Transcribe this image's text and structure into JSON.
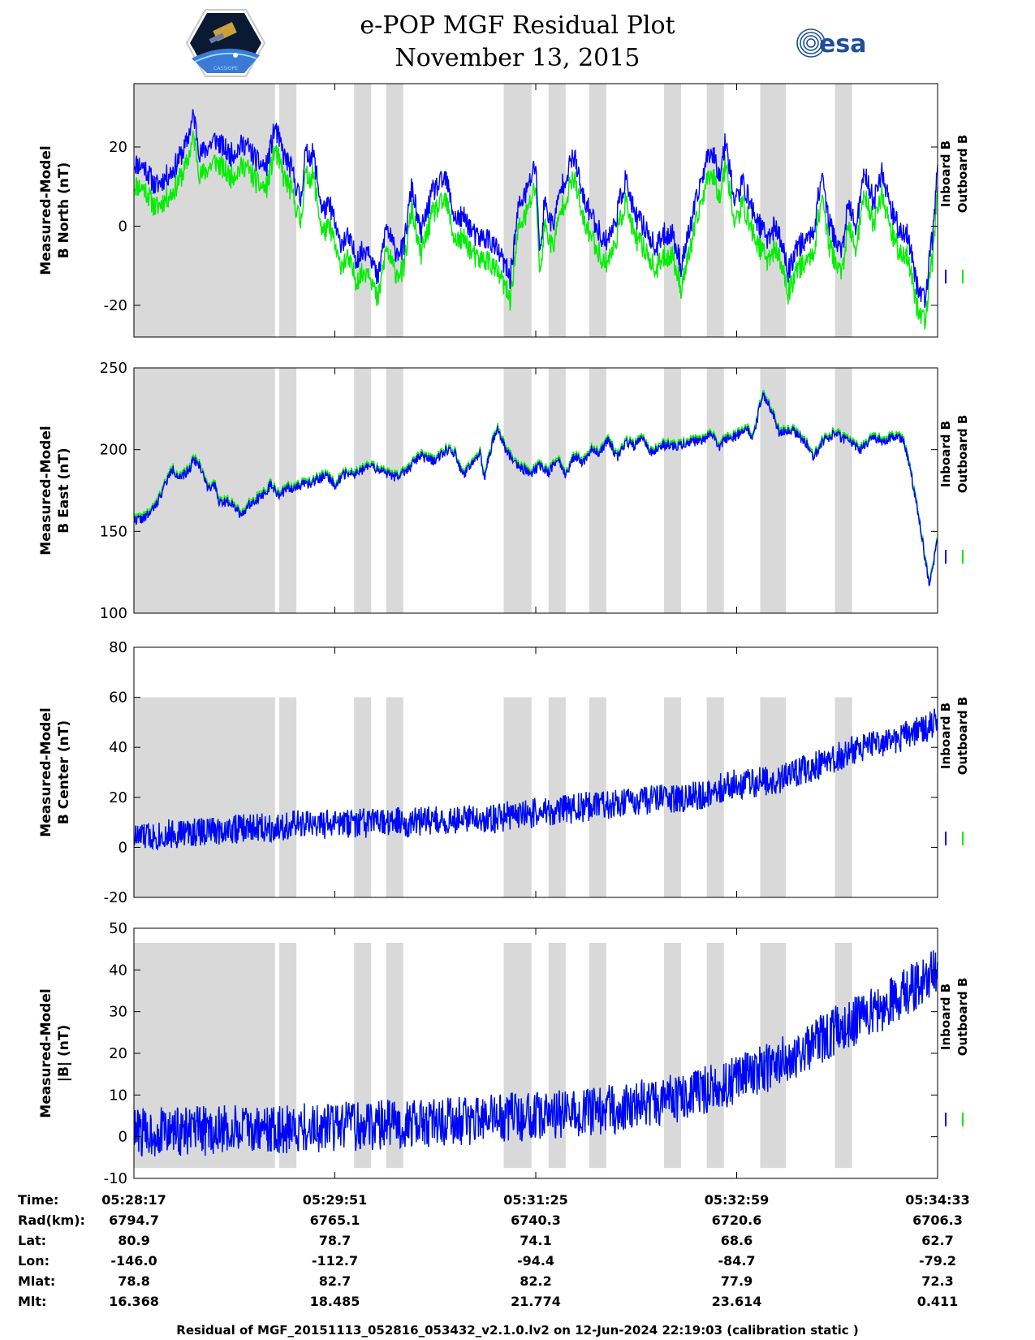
{
  "title": {
    "line1": "e-POP MGF Residual Plot",
    "line2": "November 13, 2015"
  },
  "logos": {
    "left": "cassiope-mission-logo",
    "left_text": "CASSIOPE",
    "right": "esa",
    "right_text": "esa"
  },
  "colors": {
    "inboard": "#0000ff",
    "outboard": "#00ee00",
    "shade": "#d9d9d9"
  },
  "legend": {
    "inboard": "Inboard B",
    "outboard": "Outboard B"
  },
  "chart_data": [
    {
      "type": "line",
      "ylabel": [
        "Measured-Model",
        "B North (nT)"
      ],
      "ylim": [
        -28,
        36
      ],
      "yticks": [
        -20,
        0,
        20
      ],
      "yticklabels": [
        "-20",
        "0",
        "20"
      ],
      "shade_ylim": [
        -28,
        36
      ],
      "xlim": [
        0,
        376
      ],
      "series": [
        {
          "name": "Inboard B",
          "keys": [
            [
              0,
              16
            ],
            [
              5,
              15
            ],
            [
              10,
              10
            ],
            [
              18,
              14
            ],
            [
              24,
              20
            ],
            [
              28,
              28
            ],
            [
              31,
              18
            ],
            [
              38,
              22
            ],
            [
              45,
              18
            ],
            [
              52,
              21
            ],
            [
              58,
              16
            ],
            [
              62,
              15
            ],
            [
              66,
              25
            ],
            [
              70,
              18
            ],
            [
              74,
              14
            ],
            [
              78,
              6
            ],
            [
              80,
              18
            ],
            [
              84,
              18
            ],
            [
              88,
              4
            ],
            [
              92,
              5
            ],
            [
              96,
              -4
            ],
            [
              100,
              -3
            ],
            [
              104,
              -8
            ],
            [
              110,
              -5
            ],
            [
              114,
              -14
            ],
            [
              118,
              0
            ],
            [
              122,
              -6
            ],
            [
              126,
              -6
            ],
            [
              130,
              10
            ],
            [
              134,
              -2
            ],
            [
              140,
              9
            ],
            [
              146,
              12
            ],
            [
              150,
              2
            ],
            [
              155,
              2
            ],
            [
              160,
              -3
            ],
            [
              166,
              -3
            ],
            [
              172,
              -8
            ],
            [
              176,
              -13
            ],
            [
              180,
              5
            ],
            [
              184,
              9
            ],
            [
              188,
              16
            ],
            [
              190,
              -8
            ],
            [
              192,
              6
            ],
            [
              196,
              0
            ],
            [
              200,
              10
            ],
            [
              206,
              18
            ],
            [
              210,
              7
            ],
            [
              214,
              3
            ],
            [
              220,
              -4
            ],
            [
              224,
              -1
            ],
            [
              230,
              12
            ],
            [
              234,
              3
            ],
            [
              240,
              -1
            ],
            [
              244,
              -6
            ],
            [
              248,
              -2
            ],
            [
              252,
              -2
            ],
            [
              256,
              -10
            ],
            [
              260,
              -1
            ],
            [
              266,
              13
            ],
            [
              270,
              20
            ],
            [
              274,
              13
            ],
            [
              277,
              22
            ],
            [
              281,
              6
            ],
            [
              285,
              11
            ],
            [
              290,
              3
            ],
            [
              296,
              -3
            ],
            [
              300,
              0
            ],
            [
              304,
              -6
            ],
            [
              306,
              -12
            ],
            [
              310,
              -5
            ],
            [
              314,
              -4
            ],
            [
              318,
              -1
            ],
            [
              322,
              14
            ],
            [
              325,
              1
            ],
            [
              331,
              -7
            ],
            [
              334,
              5
            ],
            [
              338,
              0
            ],
            [
              342,
              14
            ],
            [
              346,
              6
            ],
            [
              350,
              14
            ],
            [
              354,
              5
            ],
            [
              358,
              -1
            ],
            [
              362,
              -2
            ],
            [
              366,
              -14
            ],
            [
              370,
              -19
            ],
            [
              374,
              -1
            ],
            [
              376,
              17
            ]
          ],
          "amp": 3,
          "seed": 11
        },
        {
          "name": "Outboard B",
          "offset": -5.5
        }
      ]
    },
    {
      "type": "line",
      "ylabel": [
        "Measured-Model",
        "B East (nT)"
      ],
      "ylim": [
        100,
        250
      ],
      "yticks": [
        100,
        150,
        200,
        250
      ],
      "yticklabels": [
        "100",
        "150",
        "200",
        "250"
      ],
      "shade_ylim": [
        100,
        250
      ],
      "xlim": [
        0,
        376
      ],
      "series": [
        {
          "name": "Inboard B",
          "keys": [
            [
              0,
              157
            ],
            [
              5,
              158
            ],
            [
              10,
              165
            ],
            [
              15,
              180
            ],
            [
              18,
              188
            ],
            [
              22,
              182
            ],
            [
              26,
              188
            ],
            [
              28,
              195
            ],
            [
              32,
              187
            ],
            [
              34,
              178
            ],
            [
              38,
              177
            ],
            [
              40,
              168
            ],
            [
              46,
              168
            ],
            [
              50,
              160
            ],
            [
              55,
              168
            ],
            [
              60,
              172
            ],
            [
              64,
              178
            ],
            [
              68,
              172
            ],
            [
              72,
              176
            ],
            [
              78,
              178
            ],
            [
              84,
              180
            ],
            [
              90,
              185
            ],
            [
              94,
              178
            ],
            [
              98,
              185
            ],
            [
              104,
              185
            ],
            [
              110,
              190
            ],
            [
              116,
              187
            ],
            [
              122,
              183
            ],
            [
              128,
              188
            ],
            [
              134,
              196
            ],
            [
              140,
              193
            ],
            [
              146,
              200
            ],
            [
              150,
              198
            ],
            [
              154,
              184
            ],
            [
              158,
              190
            ],
            [
              162,
              198
            ],
            [
              164,
              181
            ],
            [
              166,
              196
            ],
            [
              170,
              214
            ],
            [
              174,
              200
            ],
            [
              178,
              192
            ],
            [
              182,
              188
            ],
            [
              186,
              186
            ],
            [
              190,
              190
            ],
            [
              194,
              186
            ],
            [
              198,
              195
            ],
            [
              202,
              185
            ],
            [
              206,
              196
            ],
            [
              210,
              192
            ],
            [
              214,
              200
            ],
            [
              218,
              198
            ],
            [
              222,
              206
            ],
            [
              226,
              195
            ],
            [
              230,
              205
            ],
            [
              234,
              202
            ],
            [
              238,
              207
            ],
            [
              242,
              198
            ],
            [
              248,
              203
            ],
            [
              254,
              202
            ],
            [
              260,
              205
            ],
            [
              266,
              205
            ],
            [
              270,
              210
            ],
            [
              274,
              202
            ],
            [
              278,
              208
            ],
            [
              282,
              208
            ],
            [
              286,
              213
            ],
            [
              290,
              208
            ],
            [
              294,
              234
            ],
            [
              298,
              225
            ],
            [
              302,
              210
            ],
            [
              308,
              212
            ],
            [
              314,
              205
            ],
            [
              318,
              195
            ],
            [
              322,
              205
            ],
            [
              328,
              210
            ],
            [
              334,
              205
            ],
            [
              340,
              200
            ],
            [
              346,
              208
            ],
            [
              350,
              205
            ],
            [
              356,
              208
            ],
            [
              360,
              205
            ],
            [
              363,
              190
            ],
            [
              367,
              160
            ],
            [
              370,
              135
            ],
            [
              372,
              118
            ],
            [
              374,
              130
            ],
            [
              376,
              144
            ]
          ],
          "amp": 3,
          "seed": 22
        },
        {
          "name": "Outboard B",
          "offset": 1.5
        }
      ]
    },
    {
      "type": "line",
      "ylabel": [
        "Measured-Model",
        "B Center (nT)"
      ],
      "ylim": [
        -20,
        80
      ],
      "yticks": [
        -20,
        0,
        20,
        40,
        60,
        80
      ],
      "yticklabels": [
        "-20",
        "0",
        "20",
        "40",
        "60",
        "80"
      ],
      "shade_ylim": [
        -20,
        60
      ],
      "xlim": [
        0,
        376
      ],
      "series": [
        {
          "name": "Inboard B",
          "keys": [
            [
              0,
              4
            ],
            [
              40,
              7
            ],
            [
              80,
              9
            ],
            [
              120,
              10
            ],
            [
              160,
              11
            ],
            [
              200,
              15
            ],
            [
              240,
              19
            ],
            [
              260,
              20
            ],
            [
              280,
              25
            ],
            [
              300,
              27
            ],
            [
              320,
              33
            ],
            [
              340,
              40
            ],
            [
              360,
              44
            ],
            [
              376,
              50
            ]
          ],
          "amp": 6,
          "seed": 33
        },
        {
          "name": "Outboard B",
          "offset": 0
        }
      ]
    },
    {
      "type": "line",
      "ylabel": [
        "Measured-Model",
        "|B| (nT)"
      ],
      "ylim": [
        -10,
        50
      ],
      "yticks": [
        -10,
        0,
        10,
        20,
        30,
        40,
        50
      ],
      "yticklabels": [
        "-10",
        "0",
        "10",
        "20",
        "30",
        "40",
        "50"
      ],
      "shade_ylim": [
        -7.5,
        46.5
      ],
      "xlim": [
        0,
        376
      ],
      "series": [
        {
          "name": "Inboard B",
          "keys": [
            [
              0,
              1
            ],
            [
              40,
              1.5
            ],
            [
              80,
              2
            ],
            [
              120,
              3
            ],
            [
              160,
              4
            ],
            [
              200,
              5.5
            ],
            [
              230,
              7
            ],
            [
              260,
              10
            ],
            [
              290,
              15
            ],
            [
              310,
              20
            ],
            [
              330,
              26
            ],
            [
              350,
              31
            ],
            [
              365,
              36
            ],
            [
              376,
              40
            ]
          ],
          "amp": 6,
          "seed": 44
        },
        {
          "name": "Outboard B",
          "offset": 0
        }
      ]
    }
  ],
  "shaded_intervals": [
    [
      0,
      66
    ],
    [
      68,
      76
    ],
    [
      103,
      111
    ],
    [
      118,
      126
    ],
    [
      173,
      186
    ],
    [
      194,
      202
    ],
    [
      213,
      221
    ],
    [
      248,
      256
    ],
    [
      268,
      276
    ],
    [
      293,
      305
    ],
    [
      328,
      336
    ]
  ],
  "x_ticks": [
    0,
    94,
    188,
    282,
    376
  ],
  "info": {
    "labels": [
      "Time:",
      "Rad(km):",
      "Lat:",
      "Lon:",
      "Mlat:",
      "Mlt:"
    ],
    "columns": [
      [
        "05:28:17",
        "6794.7",
        "80.9",
        "-146.0",
        "78.8",
        "16.368"
      ],
      [
        "05:29:51",
        "6765.1",
        "78.7",
        "-112.7",
        "82.7",
        "18.485"
      ],
      [
        "05:31:25",
        "6740.3",
        "74.1",
        "-94.4",
        "82.2",
        "21.774"
      ],
      [
        "05:32:59",
        "6720.6",
        "68.6",
        "-84.7",
        "77.9",
        "23.614"
      ],
      [
        "05:34:33",
        "6706.3",
        "62.7",
        "-79.2",
        "72.3",
        "0.411"
      ]
    ]
  },
  "footer": "Residual of MGF_20151113_052816_053432_v2.1.0.lv2 on 12-Jun-2024 22:19:03 (calibration static )"
}
